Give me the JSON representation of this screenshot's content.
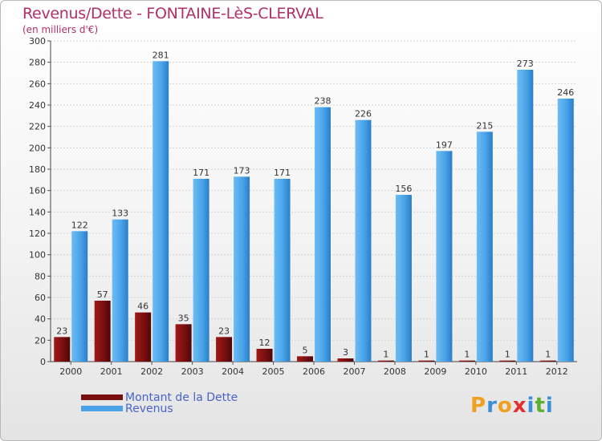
{
  "chart_data": {
    "type": "bar",
    "title": "Revenus/Dette - FONTAINE-LèS-CLERVAL",
    "subtitle": "(en milliers d'€)",
    "categories": [
      "2000",
      "2001",
      "2002",
      "2003",
      "2004",
      "2005",
      "2006",
      "2007",
      "2008",
      "2009",
      "2010",
      "2011",
      "2012"
    ],
    "series": [
      {
        "name": "Montant de la Dette",
        "color": "#7a0f10",
        "values": [
          23,
          57,
          46,
          35,
          23,
          12,
          5,
          3,
          1,
          1,
          1,
          1,
          1
        ]
      },
      {
        "name": "Revenus",
        "color": "#4aa3e8",
        "values": [
          122,
          133,
          281,
          171,
          173,
          171,
          238,
          226,
          156,
          197,
          215,
          273,
          246
        ]
      }
    ],
    "ylim": [
      0,
      300
    ],
    "yticks": [
      0,
      20,
      40,
      60,
      80,
      100,
      120,
      140,
      160,
      180,
      200,
      220,
      240,
      260,
      280,
      300
    ],
    "grid": true,
    "legend_position": "bottom-left"
  },
  "logo": {
    "text": "Proxiti",
    "letters": [
      {
        "ch": "P",
        "color": "#f0a020"
      },
      {
        "ch": "r",
        "color": "#3a8fd8"
      },
      {
        "ch": "o",
        "color": "#f0a020"
      },
      {
        "ch": "x",
        "color": "#e23030"
      },
      {
        "ch": "i",
        "color": "#3a8fd8"
      },
      {
        "ch": "t",
        "color": "#5ab030"
      },
      {
        "ch": "i",
        "color": "#3a8fd8"
      }
    ]
  }
}
